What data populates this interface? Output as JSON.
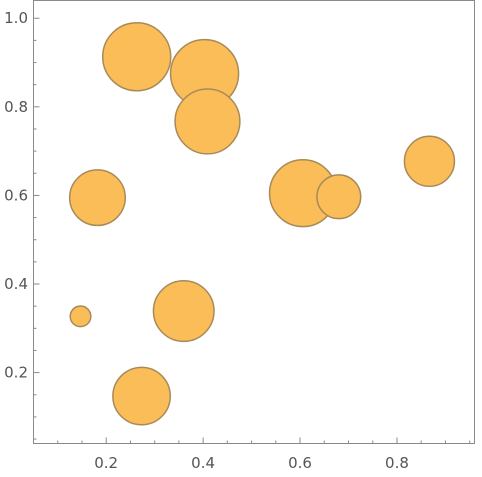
{
  "chart_data": {
    "type": "scatter",
    "title": "",
    "xlabel": "",
    "ylabel": "",
    "xlim": [
      0.05,
      0.96
    ],
    "ylim": [
      0.04,
      1.04
    ],
    "x_ticks": [
      0.2,
      0.4,
      0.6,
      0.8
    ],
    "x_tick_labels": [
      "0.2",
      "0.4",
      "0.6",
      "0.8"
    ],
    "y_ticks": [
      0.2,
      0.4,
      0.6,
      0.8,
      1.0
    ],
    "y_tick_labels": [
      "0.2",
      "0.4",
      "0.6",
      "0.8",
      "1.0"
    ],
    "grid": false,
    "bubble_color": "#fbbd57",
    "bubble_edge_color": "#a88a5a",
    "points": [
      {
        "x": 0.263,
        "y": 0.913,
        "size": 0.87
      },
      {
        "x": 0.403,
        "y": 0.875,
        "size": 0.87
      },
      {
        "x": 0.409,
        "y": 0.767,
        "size": 0.79
      },
      {
        "x": 0.182,
        "y": 0.595,
        "size": 0.58
      },
      {
        "x": 0.606,
        "y": 0.605,
        "size": 0.84
      },
      {
        "x": 0.68,
        "y": 0.597,
        "size": 0.36
      },
      {
        "x": 0.867,
        "y": 0.677,
        "size": 0.47
      },
      {
        "x": 0.147,
        "y": 0.327,
        "size": 0.08
      },
      {
        "x": 0.36,
        "y": 0.339,
        "size": 0.69
      },
      {
        "x": 0.273,
        "y": 0.147,
        "size": 0.62
      }
    ]
  }
}
